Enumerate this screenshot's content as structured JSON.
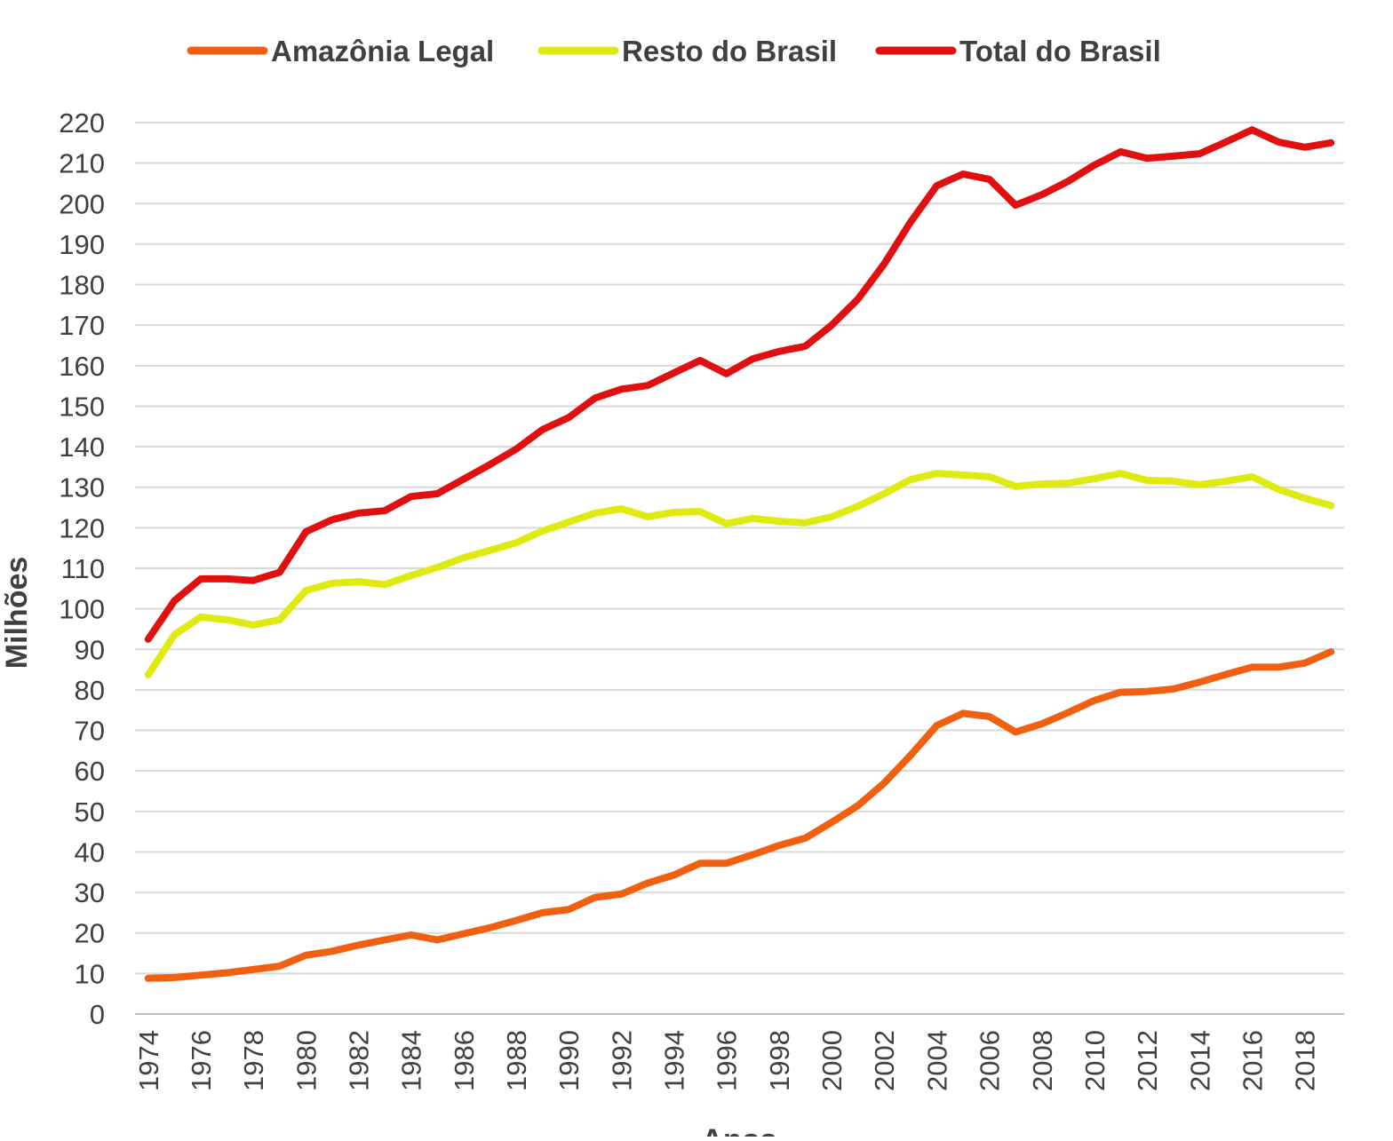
{
  "chart_data": {
    "type": "line",
    "title": "",
    "xlabel": "Anos",
    "ylabel": "Milhões",
    "ylim": [
      0,
      220
    ],
    "yticks": [
      0,
      10,
      20,
      30,
      40,
      50,
      60,
      70,
      80,
      90,
      100,
      110,
      120,
      130,
      140,
      150,
      160,
      170,
      180,
      190,
      200,
      210,
      220
    ],
    "grid": true,
    "legend_position": "top",
    "x": [
      1974,
      1975,
      1976,
      1977,
      1978,
      1979,
      1980,
      1981,
      1982,
      1983,
      1984,
      1985,
      1986,
      1987,
      1988,
      1989,
      1990,
      1991,
      1992,
      1993,
      1994,
      1995,
      1996,
      1997,
      1998,
      1999,
      2000,
      2001,
      2002,
      2003,
      2004,
      2005,
      2006,
      2007,
      2008,
      2009,
      2010,
      2011,
      2012,
      2013,
      2014,
      2015,
      2016,
      2017,
      2018,
      2019
    ],
    "xtick_labels": [
      "1974",
      "1976",
      "1978",
      "1980",
      "1982",
      "1984",
      "1986",
      "1988",
      "1990",
      "1992",
      "1994",
      "1996",
      "1998",
      "2000",
      "2002",
      "2004",
      "2006",
      "2008",
      "2010",
      "2012",
      "2014",
      "2016",
      "2018"
    ],
    "series": [
      {
        "name": "Amazônia Legal",
        "color": "#f06010",
        "values": [
          8.8,
          9,
          9.6,
          10.2,
          11,
          11.8,
          14.5,
          15.5,
          17,
          18.3,
          19.5,
          18.3,
          19.8,
          21.3,
          23.1,
          25,
          25.8,
          28.8,
          29.6,
          32.3,
          34.3,
          37.2,
          37.2,
          39.3,
          41.6,
          43.4,
          47.3,
          51.4,
          57,
          63.8,
          71.2,
          74.2,
          73.4,
          69.6,
          71.6,
          74.4,
          77.4,
          79.4,
          79.6,
          80.2,
          81.9,
          83.8,
          85.6,
          85.6,
          86.6,
          89.4
        ]
      },
      {
        "name": "Resto do Brasil",
        "color": "#dfeb10",
        "values": [
          83.7,
          93.6,
          98,
          97.3,
          96,
          97.3,
          104.5,
          106.3,
          106.7,
          106,
          108.2,
          110.2,
          112.6,
          114.4,
          116.3,
          119.2,
          121.4,
          123.6,
          124.7,
          122.7,
          123.8,
          124,
          121,
          122.3,
          121.6,
          121.2,
          122.7,
          125.3,
          128.4,
          131.9,
          133.4,
          133,
          132.6,
          130.2,
          130.8,
          131,
          132.1,
          133.4,
          131.7,
          131.5,
          130.6,
          131.5,
          132.6,
          129.5,
          127.3,
          125.5
        ]
      },
      {
        "name": "Total do Brasil",
        "color": "#e01010",
        "values": [
          92.5,
          102,
          107.4,
          107.4,
          107,
          109,
          119,
          122,
          123.6,
          124.2,
          127.7,
          128.4,
          132,
          135.6,
          139.4,
          144.2,
          147.2,
          152,
          154.2,
          155.1,
          158.2,
          161.3,
          158,
          161.7,
          163.5,
          164.8,
          170,
          176.4,
          185.1,
          195.4,
          204.4,
          207.3,
          206,
          199.6,
          202.2,
          205.5,
          209.5,
          212.8,
          211.2,
          211.7,
          212.3,
          215.2,
          218.2,
          215.2,
          213.9,
          215
        ]
      }
    ]
  }
}
